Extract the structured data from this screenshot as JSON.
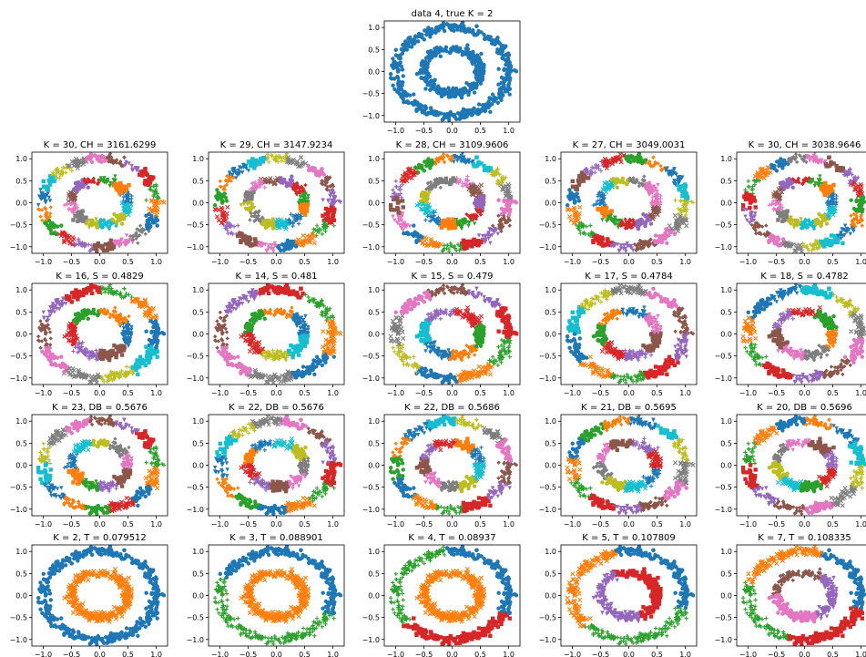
{
  "chart_data": {
    "type": "scatter",
    "colors": [
      "#1f77b4",
      "#ff7f0e",
      "#2ca02c",
      "#d62728",
      "#9467bd",
      "#8c564b",
      "#e377c2",
      "#7f7f7f",
      "#bcbd22",
      "#17becf"
    ],
    "shared_axes": {
      "xlim": [
        -1.2,
        1.2
      ],
      "ylim": [
        -1.15,
        1.15
      ],
      "xticks": [
        -1.0,
        -0.5,
        0.0,
        0.5,
        1.0
      ],
      "xtick_labels": [
        "−1.0",
        "−0.5",
        "0.0",
        "0.5",
        "1.0"
      ],
      "yticks": [
        -1.0,
        -0.5,
        0.0,
        0.5,
        1.0
      ],
      "ytick_labels": [
        "−1.0",
        "−0.5",
        "0.0",
        "0.5",
        "1.0"
      ]
    },
    "dataset": {
      "description": "two noisy concentric rings",
      "outer_ring_radius": 1.0,
      "inner_ring_radius": 0.5
    },
    "panels": [
      {
        "title": "data 4, true K = 2",
        "k": 2,
        "mode": "single"
      },
      {
        "title": "K = 30, CH = 3161.6299",
        "k": 30,
        "mode": "arcs",
        "offset": 0.1
      },
      {
        "title": "K = 29, CH = 3147.9234",
        "k": 29,
        "mode": "arcs",
        "offset": 0.25
      },
      {
        "title": "K = 28, CH = 3109.9606",
        "k": 28,
        "mode": "arcs",
        "offset": 0.4
      },
      {
        "title": "K = 27, CH = 3049.0031",
        "k": 27,
        "mode": "arcs",
        "offset": 0.55
      },
      {
        "title": "K = 30, CH = 3038.9646",
        "k": 30,
        "mode": "arcs",
        "offset": 0.7
      },
      {
        "title": "K = 16, S = 0.4829",
        "k": 16,
        "mode": "arcs",
        "offset": 0.05
      },
      {
        "title": "K = 14, S = 0.481",
        "k": 14,
        "mode": "arcs",
        "offset": 0.2
      },
      {
        "title": "K = 15, S = 0.479",
        "k": 15,
        "mode": "arcs",
        "offset": 0.35
      },
      {
        "title": "K = 17, S = 0.4784",
        "k": 17,
        "mode": "arcs",
        "offset": 0.5
      },
      {
        "title": "K = 18, S = 0.4782",
        "k": 18,
        "mode": "arcs",
        "offset": 0.65
      },
      {
        "title": "K = 23, DB = 0.5676",
        "k": 23,
        "mode": "arcs",
        "offset": 0.15
      },
      {
        "title": "K = 22, DB = 0.5676",
        "k": 22,
        "mode": "arcs",
        "offset": 0.3
      },
      {
        "title": "K = 22, DB = 0.5686",
        "k": 22,
        "mode": "arcs",
        "offset": 0.45
      },
      {
        "title": "K = 21, DB = 0.5695",
        "k": 21,
        "mode": "arcs",
        "offset": 0.6
      },
      {
        "title": "K = 20, DB = 0.5696",
        "k": 20,
        "mode": "arcs",
        "offset": 0.75
      },
      {
        "title": "K = 2, T = 0.079512",
        "k": 2,
        "mode": "rings"
      },
      {
        "title": "K = 3, T = 0.088901",
        "k": 3,
        "mode": "outer_split",
        "outer_parts": 2
      },
      {
        "title": "K = 4, T = 0.08937",
        "k": 4,
        "mode": "outer_split",
        "outer_parts": 3
      },
      {
        "title": "K = 5, T = 0.107809",
        "k": 5,
        "mode": "both_split",
        "outer_parts": 3,
        "inner_parts": 2
      },
      {
        "title": "K = 7, T = 0.108335",
        "k": 7,
        "mode": "both_split",
        "outer_parts": 4,
        "inner_parts": 3
      }
    ]
  }
}
